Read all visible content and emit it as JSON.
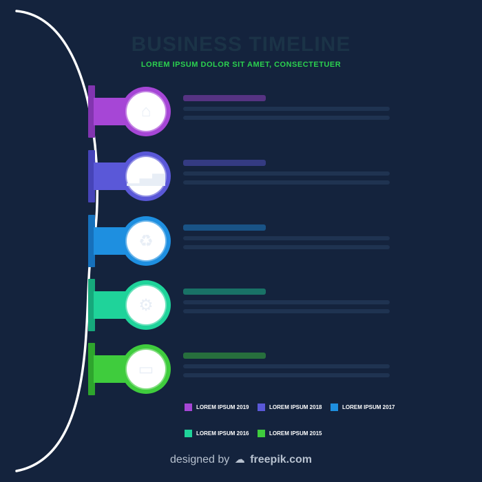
{
  "header": {
    "title": "BUSINESS TIMELINE",
    "subtitle": "LOREM IPSUM DOLOR SIT AMET, CONSECTETUER"
  },
  "colors": {
    "background": "#14233d",
    "arc": "#ffffff",
    "subtitle": "#2bd14f"
  },
  "steps": [
    {
      "year": "2019",
      "color": "#a646d6",
      "dark": "#8235b0",
      "icon": "home-icon",
      "glyph": "⌂"
    },
    {
      "year": "2018",
      "color": "#5a58d8",
      "dark": "#4644b8",
      "icon": "chart-icon",
      "glyph": "▁▃▅"
    },
    {
      "year": "2017",
      "color": "#1e8fe0",
      "dark": "#1670bb",
      "icon": "recycle-icon",
      "glyph": "♻"
    },
    {
      "year": "2016",
      "color": "#1fd39a",
      "dark": "#16a87b",
      "icon": "gear-icon",
      "glyph": "⚙"
    },
    {
      "year": "2015",
      "color": "#3fcc3d",
      "dark": "#2ea52d",
      "icon": "document-icon",
      "glyph": "▭"
    }
  ],
  "legend": [
    {
      "label": "LOREM IPSUM 2019",
      "color": "#a646d6"
    },
    {
      "label": "LOREM IPSUM 2018",
      "color": "#5a58d8"
    },
    {
      "label": "LOREM IPSUM 2017",
      "color": "#1e8fe0"
    },
    {
      "label": "LOREM IPSUM 2016",
      "color": "#1fd39a"
    },
    {
      "label": "LOREM IPSUM 2015",
      "color": "#3fcc3d"
    }
  ],
  "credit": {
    "prefix": "designed by",
    "brand": "freepik.com"
  }
}
